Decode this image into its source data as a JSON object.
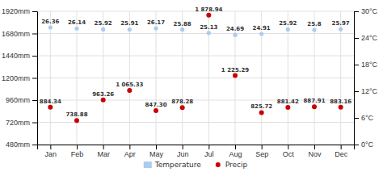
{
  "chart_data": {
    "type": "scatter",
    "categories": [
      "Jan",
      "Feb",
      "Mar",
      "Apr",
      "May",
      "Jun",
      "Jul",
      "Aug",
      "Sep",
      "Oct",
      "Nov",
      "Dec"
    ],
    "series": [
      {
        "name": "Temperature",
        "type": "scatter",
        "marker": "circle",
        "color": "#aaccee",
        "axis": "y2",
        "values": [
          26.36,
          26.14,
          25.92,
          25.91,
          26.17,
          25.88,
          25.13,
          24.69,
          24.91,
          25.92,
          25.8,
          25.97
        ]
      },
      {
        "name": "Precip",
        "type": "scatter",
        "marker": "circle",
        "color": "#cc0000",
        "values": [
          884.34,
          738.88,
          963.26,
          1065.33,
          847.3,
          878.28,
          1878.94,
          1225.29,
          825.72,
          881.42,
          887.91,
          883.16
        ],
        "value_labels": [
          "884.34",
          "738.88",
          "963.26",
          "1 065.33",
          "847.30",
          "878.28",
          "1 878.94",
          "1 225.29",
          "825.72",
          "881.42",
          "887.91",
          "883.16"
        ]
      }
    ],
    "ylim": [
      480,
      1920
    ],
    "yticks": [
      {
        "value": 480,
        "label": "480mm"
      },
      {
        "value": 720,
        "label": "720mm"
      },
      {
        "value": 960,
        "label": "960mm"
      },
      {
        "value": 1200,
        "label": "1200mm"
      },
      {
        "value": 1440,
        "label": "1440mm"
      },
      {
        "value": 1680,
        "label": "1680mm"
      },
      {
        "value": 1920,
        "label": "1920mm"
      }
    ],
    "y2lim": [
      0,
      30
    ],
    "y2ticks": [
      {
        "value": 0,
        "label": "0°C"
      },
      {
        "value": 6,
        "label": "6°C"
      },
      {
        "value": 12,
        "label": "12°C"
      },
      {
        "value": 18,
        "label": "18°C"
      },
      {
        "value": 24,
        "label": "24°C"
      },
      {
        "value": 30,
        "label": "30°C"
      }
    ],
    "grid": true,
    "legend": "bottom",
    "data_labels": true
  }
}
